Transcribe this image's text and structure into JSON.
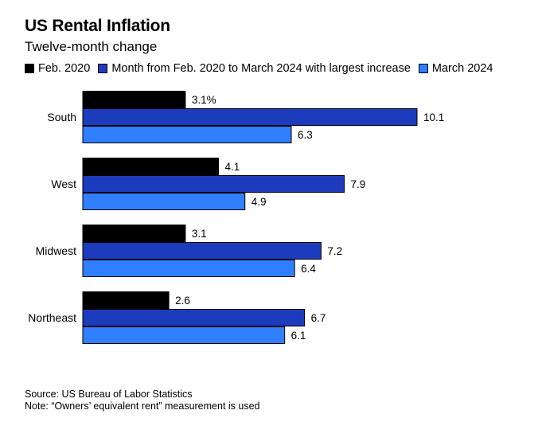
{
  "title": "US Rental Inflation",
  "subtitle": "Twelve-month change",
  "colors": {
    "feb2020": "#000000",
    "largest": "#1d3bbd",
    "march2024": "#2f7fff"
  },
  "source": "Source: US Bureau of Labor Statistics",
  "note": "Note: “Owners’ equivalent rent” measurement is used",
  "chart_data": {
    "type": "bar",
    "orientation": "horizontal",
    "categories": [
      "South",
      "West",
      "Midwest",
      "Northeast"
    ],
    "series": [
      {
        "name": "Feb. 2020",
        "values": [
          3.1,
          4.1,
          3.1,
          2.6
        ],
        "labels": [
          "3.1%",
          "4.1",
          "3.1",
          "2.6"
        ]
      },
      {
        "name": "Month from Feb. 2020 to March 2024 with largest increase",
        "values": [
          10.1,
          7.9,
          7.2,
          6.7
        ],
        "labels": [
          "10.1",
          "7.9",
          "7.2",
          "6.7"
        ]
      },
      {
        "name": "March 2024",
        "values": [
          6.3,
          4.9,
          6.4,
          6.1
        ],
        "labels": [
          "6.3",
          "4.9",
          "6.4",
          "6.1"
        ]
      }
    ],
    "xlim": [
      0,
      10.1
    ],
    "legend_position": "top",
    "grid": false
  }
}
